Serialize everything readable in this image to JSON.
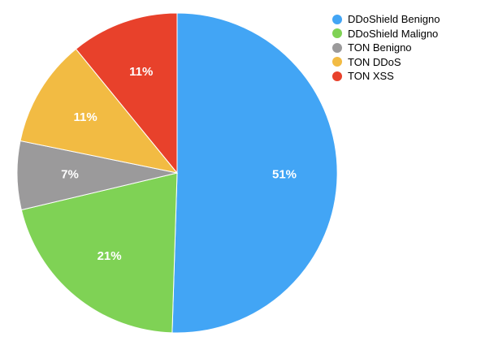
{
  "chart_data": {
    "type": "pie",
    "title": "",
    "legend_position": "top-right",
    "slices": [
      {
        "label": "DDoShield Benigno",
        "value": 51,
        "value_label": "51%",
        "color": "#42a5f5"
      },
      {
        "label": "DDoShield Maligno",
        "value": 21,
        "value_label": "21%",
        "color": "#7fd255"
      },
      {
        "label": "TON Benigno",
        "value": 7,
        "value_label": "7%",
        "color": "#9b9a9b"
      },
      {
        "label": "TON DDoS",
        "value": 11,
        "value_label": "11%",
        "color": "#f2bb43"
      },
      {
        "label": "TON XSS",
        "value": 11,
        "value_label": "11%",
        "color": "#e8412b"
      }
    ]
  }
}
